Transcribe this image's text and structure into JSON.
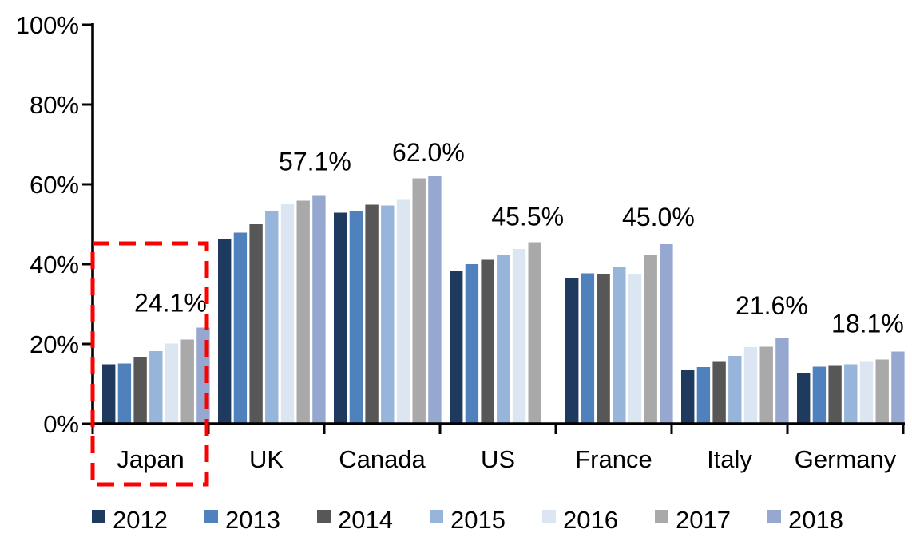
{
  "chart_data": {
    "type": "bar",
    "title": "",
    "xlabel": "",
    "ylabel": "",
    "grid": false,
    "ylim": [
      0,
      100
    ],
    "yticks": [
      0,
      20,
      40,
      60,
      80,
      100
    ],
    "ytick_labels": [
      "0%",
      "20%",
      "40%",
      "60%",
      "80%",
      "100%"
    ],
    "categories": [
      "Japan",
      "UK",
      "Canada",
      "US",
      "France",
      "Italy",
      "Germany"
    ],
    "series": [
      {
        "name": "2012",
        "color": "#1E3A5F",
        "values": [
          14.9,
          46.3,
          52.9,
          38.3,
          36.5,
          13.4,
          12.7
        ]
      },
      {
        "name": "2013",
        "color": "#4F81BD",
        "values": [
          15.1,
          47.9,
          53.3,
          40.0,
          37.7,
          14.2,
          14.3
        ]
      },
      {
        "name": "2014",
        "color": "#575757",
        "values": [
          16.7,
          50.0,
          54.9,
          41.1,
          37.6,
          15.5,
          14.5
        ]
      },
      {
        "name": "2015",
        "color": "#97B4DB",
        "values": [
          18.2,
          53.3,
          54.7,
          42.2,
          39.4,
          17.0,
          14.9
        ]
      },
      {
        "name": "2016",
        "color": "#DCE6F2",
        "values": [
          20.1,
          55.0,
          56.1,
          43.8,
          37.5,
          19.2,
          15.5
        ]
      },
      {
        "name": "2017",
        "color": "#A9A9A9",
        "values": [
          21.1,
          55.9,
          61.5,
          45.5,
          42.3,
          19.3,
          16.1
        ]
      },
      {
        "name": "2018",
        "color": "#97A8D0",
        "values": [
          24.1,
          57.1,
          62.0,
          null,
          45.0,
          21.6,
          18.1
        ]
      }
    ],
    "data_labels": [
      {
        "category": "Japan",
        "text": "24.1%"
      },
      {
        "category": "UK",
        "text": "57.1%"
      },
      {
        "category": "Canada",
        "text": "62.0%"
      },
      {
        "category": "US",
        "text": "45.5%"
      },
      {
        "category": "France",
        "text": "45.0%"
      },
      {
        "category": "Italy",
        "text": "21.6%"
      },
      {
        "category": "Germany",
        "text": "18.1%"
      }
    ],
    "highlight": {
      "category": "Japan",
      "style": "dashed-box",
      "color": "#FE0000"
    },
    "legend": {
      "position": "bottom",
      "labels": [
        "2012",
        "2013",
        "2014",
        "2015",
        "2016",
        "2017",
        "2018"
      ]
    },
    "axis_color": "#000000"
  }
}
